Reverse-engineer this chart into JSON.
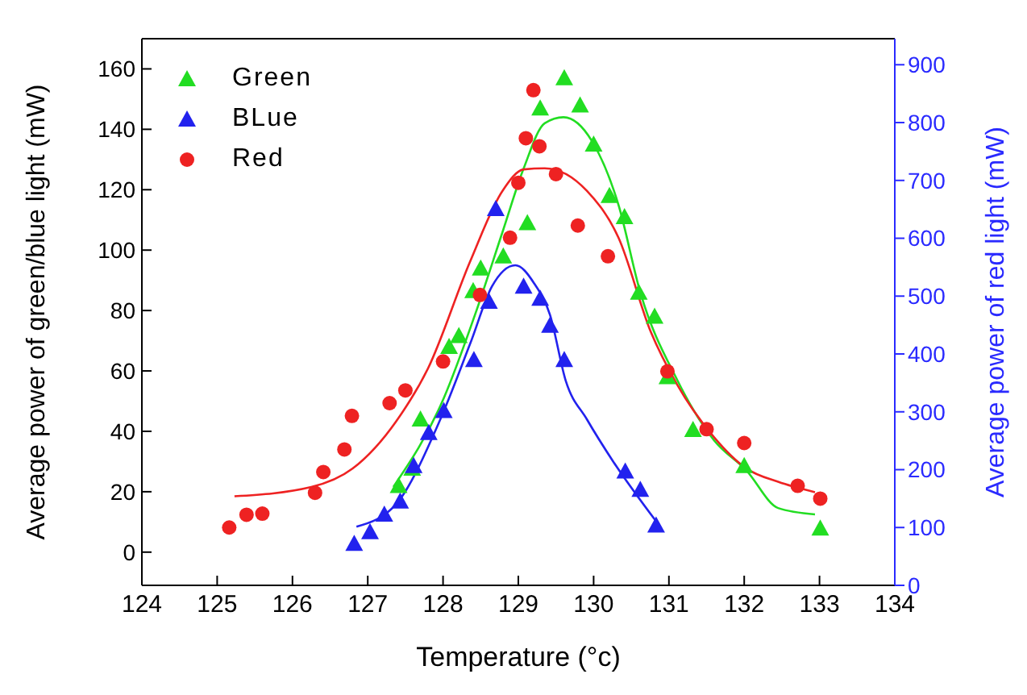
{
  "chart_data": {
    "type": "scatter",
    "xlabel": "Temperature (°c)",
    "ylabel": "Average power of green/blue light (mW)",
    "y2label": "Average power of red light (mW)",
    "xlim": [
      124,
      134
    ],
    "xticks": [
      124,
      125,
      126,
      127,
      128,
      129,
      130,
      131,
      132,
      133,
      134
    ],
    "ylim": [
      -11,
      170
    ],
    "yticks": [
      0,
      20,
      40,
      60,
      80,
      100,
      120,
      140,
      160
    ],
    "y2lim": [
      0,
      945
    ],
    "y2ticks": [
      0,
      100,
      200,
      300,
      400,
      500,
      600,
      700,
      800,
      900
    ],
    "grid": false,
    "legend": "top left",
    "series": [
      {
        "name": "Green",
        "marker": "triangle",
        "color": "#22dd22",
        "x": [
          127.41,
          127.59,
          127.7,
          128.08,
          128.21,
          128.4,
          128.5,
          128.8,
          129.12,
          129.29,
          129.61,
          129.82,
          130.0,
          130.21,
          130.41,
          130.6,
          130.81,
          130.98,
          131.32,
          132.0,
          133.01
        ],
        "values": [
          22,
          27.7,
          44,
          68,
          71.6,
          86.5,
          94,
          98,
          109,
          147,
          157,
          148,
          135,
          118,
          111,
          86,
          78,
          58,
          40.5,
          28.6,
          7.9
        ]
      },
      {
        "name": "BLue",
        "marker": "triangle",
        "color": "#2222ee",
        "x": [
          126.82,
          127.03,
          127.22,
          127.43,
          127.61,
          127.81,
          128.01,
          128.41,
          128.61,
          128.7,
          129.07,
          129.29,
          129.42,
          129.61,
          130.42,
          130.62,
          130.83
        ],
        "values": [
          2.8,
          6.7,
          12.5,
          16.8,
          28.6,
          39.5,
          46.8,
          63.7,
          83,
          113.7,
          88,
          84,
          75,
          63.7,
          26.8,
          20.7,
          8.9
        ]
      },
      {
        "name": "Red",
        "marker": "circle",
        "axis": "y2",
        "color": "#ee2222",
        "x": [
          125.16,
          125.39,
          125.6,
          126.3,
          126.41,
          126.69,
          126.79,
          127.29,
          127.5,
          128.0,
          128.49,
          128.89,
          129.0,
          129.1,
          129.2,
          129.28,
          129.5,
          129.79,
          130.19,
          130.98,
          131.5,
          132.0,
          132.71,
          133.01
        ],
        "values": [
          100,
          122,
          124,
          160,
          196,
          235,
          293,
          315,
          337,
          387,
          502,
          601,
          696,
          773,
          856,
          759,
          711,
          622,
          569,
          370,
          270,
          246,
          172,
          150
        ]
      },
      {
        "type": "line",
        "color": "#22dd22",
        "x": [
          127.34,
          128.01,
          128.43,
          128.79,
          129.07,
          129.35,
          129.6,
          129.98,
          130.33,
          130.62,
          131.11,
          131.6,
          132.03,
          132.45,
          132.94
        ],
        "values": [
          21.6,
          51,
          79,
          106,
          127,
          142,
          144,
          136,
          115,
          86,
          57,
          37,
          27,
          14.6,
          12.5
        ]
      },
      {
        "type": "line",
        "color": "#2222ee",
        "x": [
          126.85,
          127.38,
          127.94,
          128.36,
          128.65,
          128.96,
          129.21,
          129.42,
          129.63,
          129.91,
          130.26,
          130.83
        ],
        "values": [
          8.4,
          16,
          42.6,
          69,
          88,
          95,
          89,
          78.6,
          56.7,
          44,
          30,
          10.2
        ]
      },
      {
        "type": "line",
        "axis": "y2",
        "color": "#ee2222",
        "x": [
          125.23,
          126.25,
          126.8,
          127.38,
          127.8,
          128.36,
          128.79,
          129.07,
          129.35,
          129.91,
          130.33,
          130.76,
          131.11,
          131.6,
          132.03,
          132.45,
          132.94
        ],
        "values": [
          154,
          170,
          202,
          284,
          375,
          560,
          682,
          719,
          721,
          682,
          601,
          438,
          347,
          256,
          202,
          179,
          161
        ]
      }
    ]
  }
}
